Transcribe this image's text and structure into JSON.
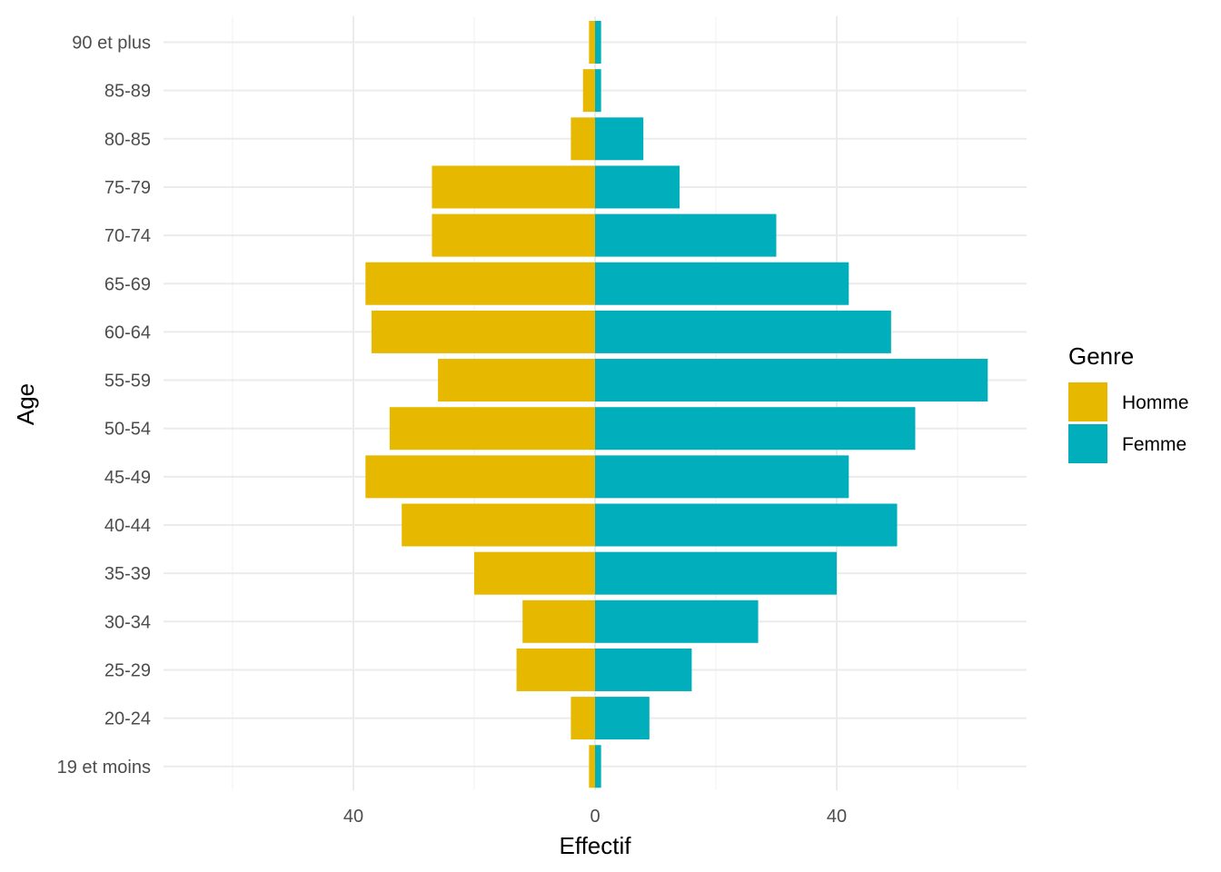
{
  "chart_data": {
    "type": "bar",
    "orientation": "horizontal",
    "layout": "population-pyramid",
    "categories": [
      "19 et moins",
      "20-24",
      "25-29",
      "30-34",
      "35-39",
      "40-44",
      "45-49",
      "50-54",
      "55-59",
      "60-64",
      "65-69",
      "70-74",
      "75-79",
      "80-85",
      "85-89",
      "90 et plus"
    ],
    "series": [
      {
        "name": "Homme",
        "color": "#E6B800",
        "direction": "left",
        "values": [
          1,
          4,
          13,
          12,
          20,
          32,
          38,
          34,
          26,
          37,
          38,
          27,
          27,
          4,
          2,
          1
        ]
      },
      {
        "name": "Femme",
        "color": "#00AFBB",
        "direction": "right",
        "values": [
          1,
          9,
          16,
          27,
          40,
          50,
          42,
          53,
          65,
          49,
          42,
          30,
          14,
          8,
          1,
          1
        ]
      }
    ],
    "xlabel": "Effectif",
    "ylabel": "Age",
    "xlim": [
      -71.5,
      71.5
    ],
    "xticks": [
      -40,
      0,
      40
    ],
    "xtick_labels": [
      "40",
      "0",
      "40"
    ],
    "legend": {
      "title": "Genre",
      "position": "right"
    },
    "grid": true,
    "theme": "minimal"
  }
}
